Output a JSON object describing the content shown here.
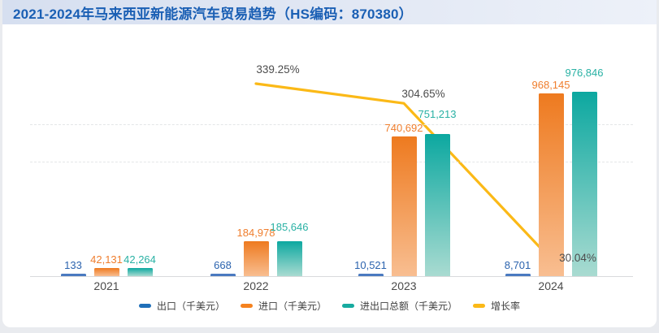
{
  "header": {
    "title": "2021-2024年马来西亚新能源汽车贸易趋势（HS编码：870380）"
  },
  "chart_data": {
    "type": "bar",
    "title": "2021-2024年马来西亚新能源汽车贸易趋势（HS编码：870380）",
    "categories": [
      "2021",
      "2022",
      "2023",
      "2024"
    ],
    "series": [
      {
        "key": "export",
        "name": "出口（千美元）",
        "chart_type": "bar",
        "color": "#1f6fb9",
        "values": [
          133,
          668,
          10521,
          8701
        ],
        "labels": [
          "133",
          "668",
          "10,521",
          "8,701"
        ]
      },
      {
        "key": "import",
        "name": "进口（千美元）",
        "chart_type": "bar",
        "color": "#f5821f",
        "gradient": [
          "#ee7a1f",
          "#f8be91"
        ],
        "values": [
          42131,
          184978,
          740692,
          968145
        ],
        "labels": [
          "42,131",
          "184,978",
          "740,692",
          "968,145"
        ]
      },
      {
        "key": "total",
        "name": "进出口总额（千美元）",
        "chart_type": "bar",
        "color": "#17aba0",
        "gradient": [
          "#0ca8a0",
          "#a9dbd1"
        ],
        "values": [
          42264,
          185646,
          751213,
          976846
        ],
        "labels": [
          "42,264",
          "185,646",
          "751,213",
          "976,846"
        ]
      },
      {
        "key": "growth",
        "name": "增长率",
        "chart_type": "line",
        "color": "#fbb917",
        "values": [
          null,
          339.25,
          304.65,
          30.04
        ],
        "labels": [
          null,
          "339.25%",
          "304.65%",
          "30.04%"
        ]
      }
    ],
    "value_axis": {
      "min": 0,
      "max_estimate": 1000000,
      "tick_labels_visible": false
    },
    "percent_axis": {
      "min": 0,
      "max_estimate": 400,
      "tick_labels_visible": false
    },
    "grid": "horizontal-dashed",
    "legend_position": "bottom"
  }
}
